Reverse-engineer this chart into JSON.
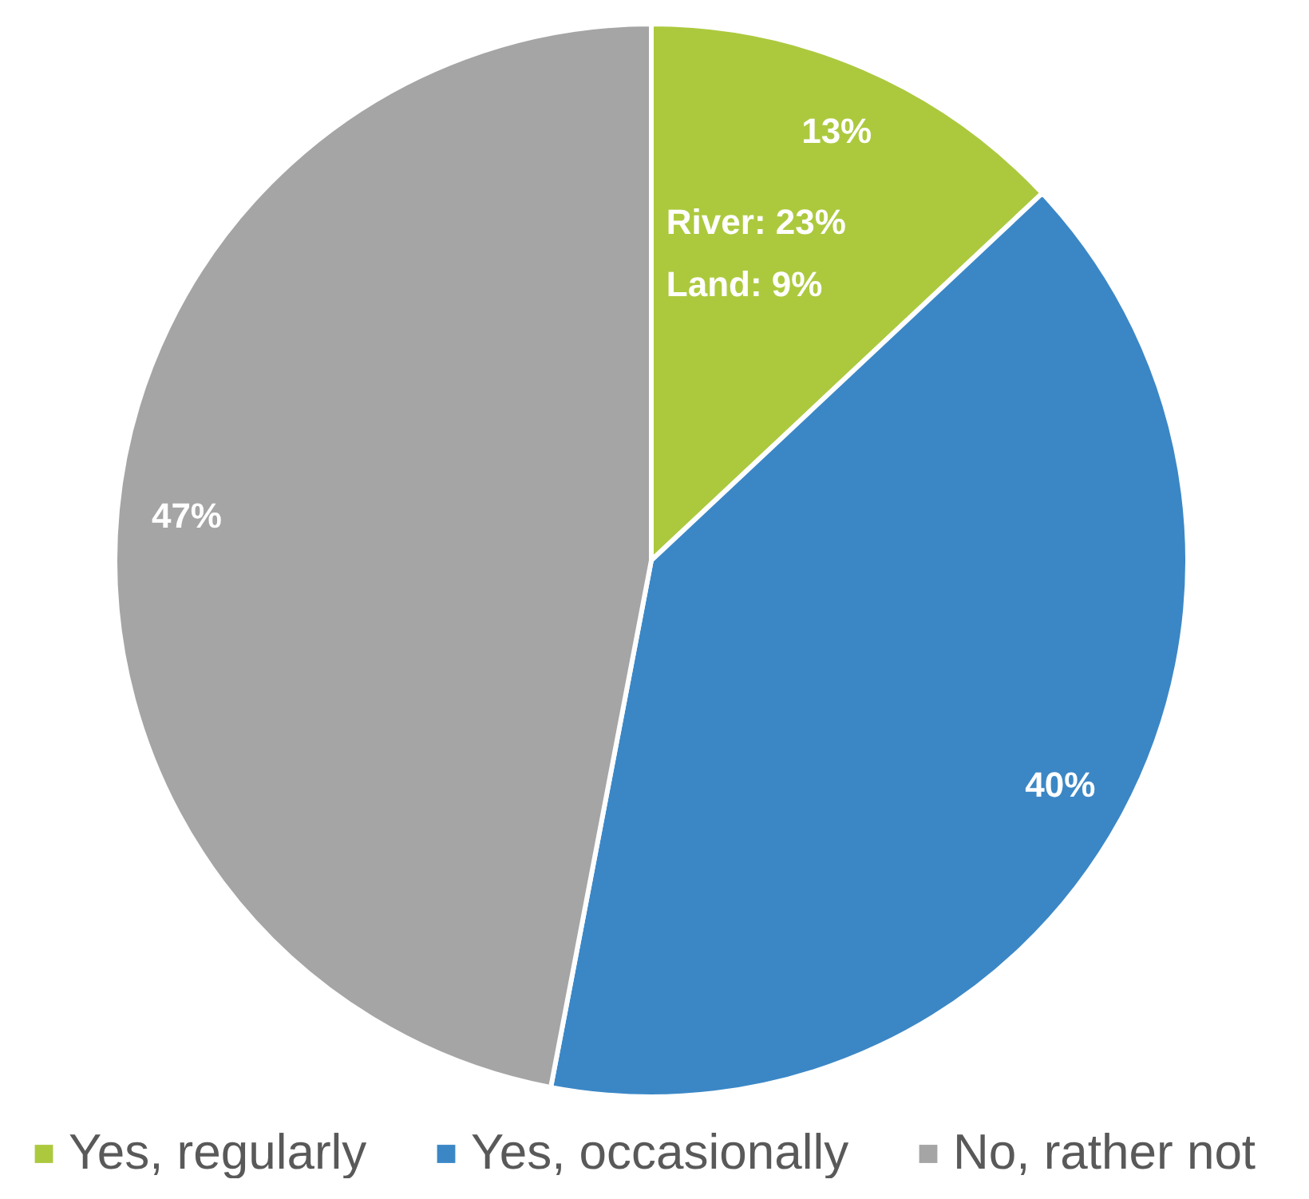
{
  "chart_data": {
    "type": "pie",
    "categories": [
      "Yes, regularly",
      "Yes, occasionally",
      "No, rather not"
    ],
    "values": [
      13,
      40,
      47
    ],
    "colors": [
      "#acc93e",
      "#3b87c6",
      "#a5a5a5"
    ],
    "value_labels": [
      "13%",
      "40%",
      "47%"
    ],
    "annotations": [
      "River: 23%",
      "Land: 9%"
    ],
    "legend": "bottom"
  }
}
